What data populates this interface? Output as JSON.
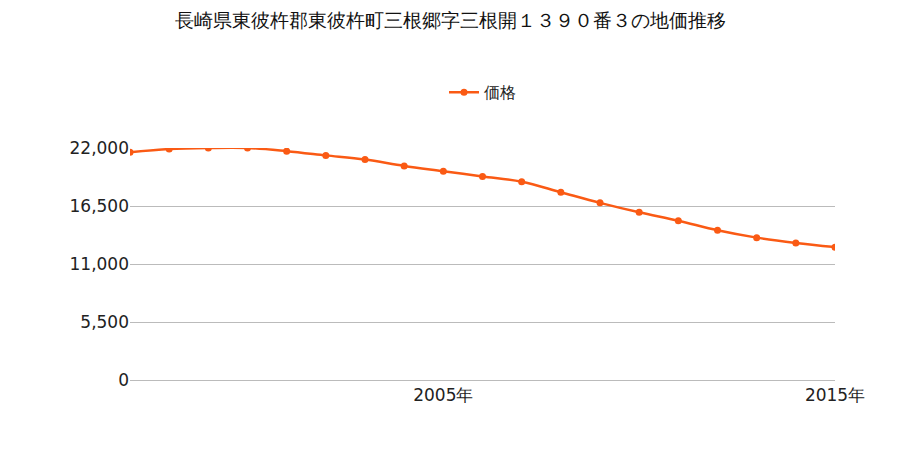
{
  "chart_data": {
    "type": "line",
    "title": "長崎県東彼杵郡東彼杵町三根郷字三根開１３９０番３の地価推移",
    "x": [
      1997,
      1998,
      1999,
      2000,
      2001,
      2002,
      2003,
      2004,
      2005,
      2006,
      2007,
      2008,
      2009,
      2010,
      2011,
      2012,
      2013,
      2014,
      2015
    ],
    "series": [
      {
        "name": "価格",
        "color": "#fa5a14",
        "marker": "circle",
        "values": [
          21600,
          21900,
          22000,
          22000,
          21700,
          21300,
          20900,
          20300,
          19800,
          19300,
          18800,
          17800,
          16800,
          15900,
          15100,
          14200,
          13500,
          13000,
          12600
        ]
      }
    ],
    "xlim": [
      1997,
      2015
    ],
    "xticks": [
      {
        "value": 2005,
        "label": "2005年"
      },
      {
        "value": 2015,
        "label": "2015年"
      }
    ],
    "ylim": [
      0,
      22000
    ],
    "yticks": [
      0,
      {
        "value": 5500,
        "label": "5,500"
      },
      {
        "value": 11000,
        "label": "11,000"
      },
      {
        "value": 16500,
        "label": "16,500"
      },
      {
        "value": 22000,
        "label": "22,000"
      }
    ],
    "grid": true,
    "legend": "top"
  }
}
